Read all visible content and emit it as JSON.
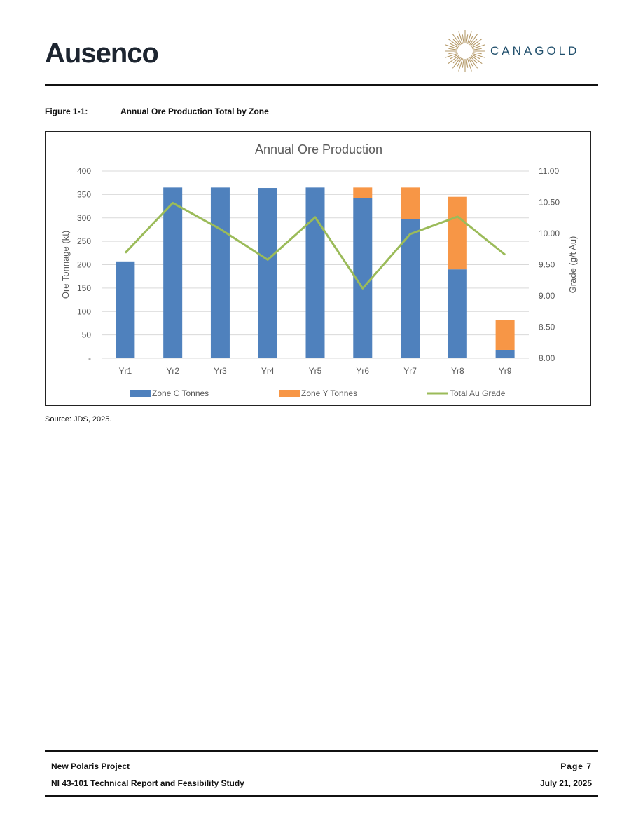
{
  "header": {
    "left_logo": {
      "text": "Ausenco",
      "icon": "ausenco-logo"
    },
    "right_logo": {
      "text": "CANAGOLD",
      "icon": "canagold-sunburst-logo"
    }
  },
  "figure": {
    "number": "Figure 1-1:",
    "title": "Annual Ore Production Total by Zone",
    "source": "Source: JDS, 2025."
  },
  "chart_data": {
    "type": "bar",
    "stacked": true,
    "title": "Annual Ore Production",
    "categories": [
      "Yr1",
      "Yr2",
      "Yr3",
      "Yr4",
      "Yr5",
      "Yr6",
      "Yr7",
      "Yr8",
      "Yr9"
    ],
    "series": [
      {
        "name": "Zone C Tonnes",
        "type": "bar",
        "axis": "left",
        "color": "#4f81bd",
        "values": [
          207,
          365,
          365,
          364,
          365,
          342,
          298,
          190,
          18
        ]
      },
      {
        "name": "Zone Y Tonnes",
        "type": "bar",
        "axis": "left",
        "color": "#f79646",
        "values": [
          0,
          0,
          0,
          0,
          0,
          23,
          67,
          155,
          64
        ]
      },
      {
        "name": "Total Au Grade",
        "type": "line",
        "axis": "right",
        "color": "#9bbb59",
        "values": [
          9.69,
          10.49,
          10.07,
          9.58,
          10.26,
          9.12,
          9.99,
          10.27,
          9.66
        ]
      }
    ],
    "ylabel": "Ore Tonnage (kt)",
    "y2label": "Grade (g/t Au)",
    "ylim": [
      0,
      400
    ],
    "y2lim": [
      8.0,
      11.0
    ],
    "yticks": [
      "-",
      "50",
      "100",
      "150",
      "200",
      "250",
      "300",
      "350",
      "400"
    ],
    "y2ticks": [
      "8.00",
      "8.50",
      "9.00",
      "9.50",
      "10.00",
      "10.50",
      "11.00"
    ],
    "grid": true,
    "legend_position": "bottom"
  },
  "footer": {
    "project": "New Polaris Project",
    "report": "NI 43-101 Technical Report and Feasibility Study",
    "page": "Page 7",
    "date": "July 21, 2025"
  }
}
